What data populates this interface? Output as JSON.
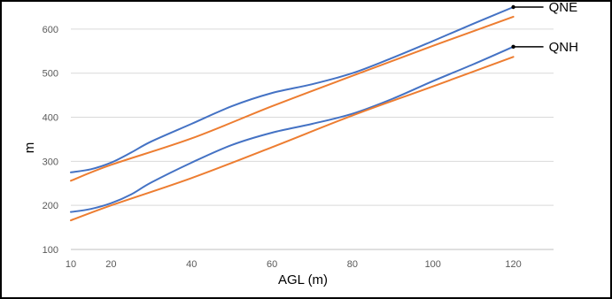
{
  "chart_data": {
    "type": "line",
    "title": "",
    "xlabel": "AGL (m)",
    "ylabel": "m",
    "xlim": [
      10,
      130
    ],
    "ylim": [
      100,
      650
    ],
    "xticks": [
      10,
      20,
      40,
      60,
      80,
      100,
      120
    ],
    "yticks": [
      100,
      200,
      300,
      400,
      500,
      600
    ],
    "grid": "horizontal",
    "colors": {
      "blue": "#4472C4",
      "orange": "#ED7D31",
      "grid": "#D9D9D9",
      "axis": "#BFBFBF"
    },
    "series": [
      {
        "color": "#4472C4",
        "x": [
          10,
          15,
          20,
          25,
          30,
          40,
          50,
          60,
          70,
          80,
          90,
          100,
          110,
          120
        ],
        "y": [
          275,
          282,
          297,
          320,
          345,
          385,
          425,
          455,
          475,
          500,
          535,
          573,
          612,
          650
        ]
      },
      {
        "color": "#ED7D31",
        "x": [
          10,
          20,
          40,
          60,
          80,
          100,
          120
        ],
        "y": [
          256,
          292,
          352,
          425,
          494,
          562,
          628
        ]
      },
      {
        "color": "#4472C4",
        "x": [
          10,
          15,
          20,
          25,
          30,
          40,
          50,
          60,
          70,
          80,
          90,
          100,
          110,
          120
        ],
        "y": [
          185,
          192,
          205,
          225,
          252,
          297,
          337,
          365,
          385,
          408,
          442,
          482,
          520,
          560
        ]
      },
      {
        "color": "#ED7D31",
        "x": [
          10,
          20,
          40,
          60,
          80,
          100,
          120
        ],
        "y": [
          166,
          200,
          262,
          332,
          404,
          470,
          537
        ]
      }
    ],
    "annotations": [
      {
        "text": "QNE",
        "x": 120,
        "y": 650
      },
      {
        "text": "QNH",
        "x": 120,
        "y": 560
      }
    ]
  }
}
